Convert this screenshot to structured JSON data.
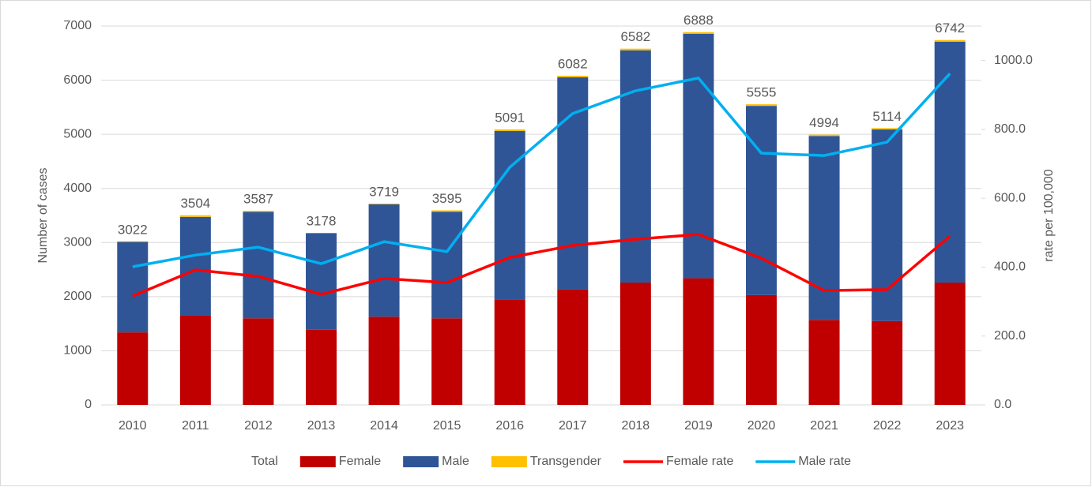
{
  "chart_data": {
    "type": "bar",
    "ylabel": "Number of cases",
    "y2label": "rate per 100,000",
    "categories": [
      "2010",
      "2011",
      "2012",
      "2013",
      "2014",
      "2015",
      "2016",
      "2017",
      "2018",
      "2019",
      "2020",
      "2021",
      "2022",
      "2023"
    ],
    "series": [
      {
        "name": "Total",
        "values": [
          3022,
          3504,
          3587,
          3178,
          3719,
          3595,
          5091,
          6082,
          6582,
          6888,
          5555,
          4994,
          5114,
          6742
        ]
      },
      {
        "name": "Female",
        "color": "#c00000",
        "values": [
          1340,
          1660,
          1600,
          1390,
          1630,
          1600,
          1950,
          2140,
          2260,
          2340,
          2030,
          1570,
          1550,
          2260
        ]
      },
      {
        "name": "Male",
        "color": "#2f5597",
        "values": [
          1672,
          1814,
          1967,
          1783,
          2079,
          1970,
          3111,
          3912,
          4292,
          4518,
          3495,
          3399,
          3539,
          4452
        ]
      },
      {
        "name": "Transgender",
        "color": "#ffc000",
        "values": [
          10,
          30,
          20,
          5,
          10,
          25,
          30,
          30,
          30,
          30,
          30,
          25,
          25,
          30
        ]
      },
      {
        "name": "Female rate",
        "color": "#ff0000",
        "axis": "y2",
        "values": [
          316,
          392,
          373,
          321,
          367,
          355,
          428,
          463,
          481,
          495,
          426,
          332,
          335,
          490
        ]
      },
      {
        "name": "Male rate",
        "color": "#00b0f0",
        "axis": "y2",
        "values": [
          401,
          435,
          458,
          410,
          474,
          445,
          690,
          846,
          912,
          949,
          731,
          724,
          763,
          962
        ]
      }
    ],
    "ylim": [
      0,
      7000
    ],
    "yticks": [
      0,
      1000,
      2000,
      3000,
      4000,
      5000,
      6000,
      7000
    ],
    "y2lim": [
      0,
      1100
    ],
    "y2ticks": [
      {
        "value": 0,
        "label": "0.0"
      },
      {
        "value": 200,
        "label": "200.0"
      },
      {
        "value": 400,
        "label": "400.0"
      },
      {
        "value": 600,
        "label": "600.0"
      },
      {
        "value": 800,
        "label": "800.0"
      },
      {
        "value": 1000,
        "label": "1000.0"
      }
    ],
    "grid": true,
    "legend": "bottom"
  }
}
